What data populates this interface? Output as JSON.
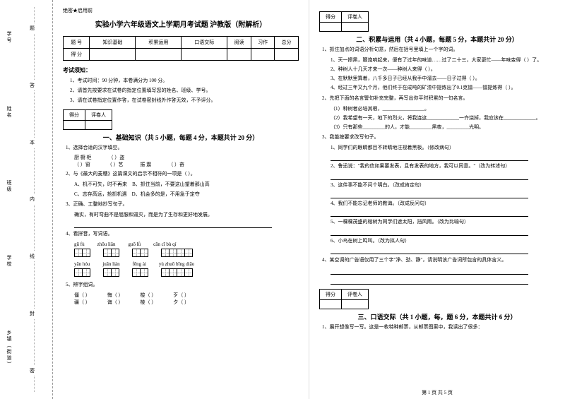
{
  "spine": {
    "labels": [
      "学号",
      "姓名",
      "班级",
      "学校",
      "乡镇（街道）"
    ],
    "chars": [
      "题",
      "答",
      "本",
      "内",
      "线",
      "封",
      "密"
    ]
  },
  "confidential": "绝密★启用前",
  "title": "实验小学六年级语文上学期月考试题 沪教版（附解析）",
  "scoreTable": {
    "headers": [
      "题 号",
      "知识基础",
      "积累运用",
      "口语交际",
      "阅读",
      "习作",
      "总分"
    ],
    "row2": "得 分"
  },
  "noticeTitle": "考试须知：",
  "notices": [
    "1、考试时间：90 分钟，本卷满分为 100 分。",
    "2、请首先按要求在试卷的指定位置填写您的姓名、班级、学号。",
    "3、请在试卷指定位置作答，在试卷密封线外作答无效，不予评分。"
  ],
  "headTable": {
    "c1": "得分",
    "c2": "评卷人"
  },
  "section1": {
    "title": "一、基础知识（共 5 小题，每题 4 分，本题共计 20 分）",
    "q1": "1、选择合适的汉字填空。",
    "q1opts": [
      "厨  橱  柜",
      "（   ）窗",
      "（   ）艺",
      "（   ）盗",
      "振  震",
      "（   ）奋",
      "（   ）撼"
    ],
    "q2": "2、与《最大的麦穗》这篇课文的启示不相符的一项是（      ）。",
    "q2a": "A、机不可失，时不再来",
    "q2b": "B、抓住当前，不要这山望着那山高",
    "q2c": "C、志存高远，抢抓机遇",
    "q2d": "D、机会多的是，不用急于定夺",
    "q3": "3、正确、工整地抄写句子。",
    "q3text": "确实，有时弯曲不是屈服和毁灭，而是为了生存和更好地发展。",
    "q4": "4、看拼音，写词语。",
    "pinyin1": [
      "gū  fù",
      "zhōu liǎn",
      "guō  lǜ",
      "cān cī bù  qí"
    ],
    "pinyin2": [
      "yān  hóu",
      "juān liàn",
      "fēng  ài",
      "yù  zhuō bīng diāo"
    ],
    "q5": "5、辨字组词。",
    "q5rows": [
      [
        "僵（      ）",
        "悔（      ）",
        "梭（      ）",
        "歹（      ）"
      ],
      [
        "疆（      ）",
        "诲（      ）",
        "棱（      ）",
        "夕（      ）"
      ]
    ]
  },
  "section2": {
    "title": "二、积累与运用（共 4 小题，每题 5 分，本题共计 20 分）",
    "q1": "1、抓住加点的词语分析句意，然后在括号里填上一个字的词。",
    "q1items": [
      "1、天一擦黑，鞭炮响起来，便有了过年的味道……过了二十三，大家更忙——年味变得（      ）了。",
      "2、种树人十几天才来一次——种树人来得（      ）。",
      "3、在默默里算着，八千多日子已经从我手中溜去——日子过得（      ）。",
      "4、经过三年又九个月，他们终于在成吨的矿渣中提炼出了0.1克镭——镭提炼得（      ）。"
    ],
    "q2": "2、先把下面的名言警句补充完整，再写出你平时积累的一句名言。",
    "q2items": [
      "（1）种树者必培其根，_________________。",
      "（2）我希望有一天，地下的烈火，将我连这_____________一齐烧掉，我应该在_____________。",
      "（3）只有那些_________的人，才能_________黑夜，_________光明。"
    ],
    "q3": "3、我能按要求改写句子。",
    "q3items": [
      "1、同学们的眼睛都目不转睛地注视着黑板。（修改病句）",
      "2、鲁迅说：\"我的信如果要发表，且有发表的地方，我可以同意。\"（改为转述句）",
      "3、这件事不能不问个明白。（改成肯定句）",
      "4、我们不能忘记老师的教诲。（改成反问句）",
      "5、一棵棵茂盛的榕树为同学们遮太阳，挡风雨。（改为比喻句）",
      "6、小鸟在树上鸣叫。（改为拟人句）"
    ],
    "q4": "4、某空调的广告语仅用了三个字\"净、劲、静\"，请说明该广告词所包含的具体含义。"
  },
  "section3": {
    "title": "三、口语交际（共 1 小题，每，题 6 分，本题共计 6 分）",
    "q1": "1、展开想像写一写。这是一枚特种邮票，从邮票图案中，我读出了很多："
  },
  "footer": "第 1 页 共 5 页"
}
